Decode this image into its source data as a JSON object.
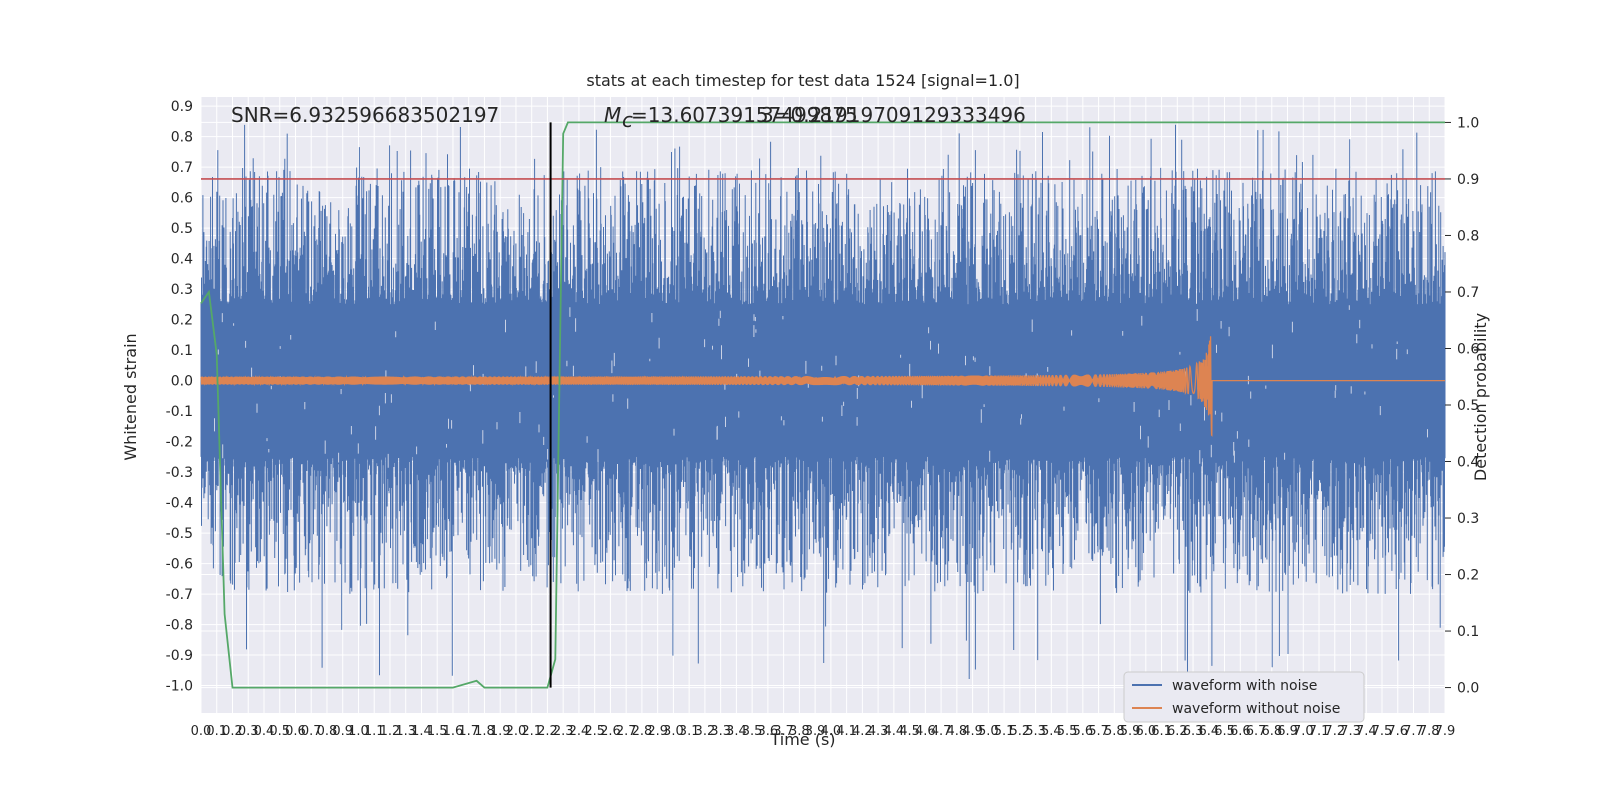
{
  "chart_data": {
    "type": "line",
    "title": "stats at each timestep for test data 1524 [signal=1.0]",
    "xlabel": "Time (s)",
    "ylabel_left": "Whitened strain",
    "ylabel_right": "Detection probability",
    "xlim": [
      0.0,
      7.9
    ],
    "ylim_left": [
      -1.09,
      0.93
    ],
    "ylim_right": [
      -0.045,
      1.045
    ],
    "xticks": [
      "0.0",
      "0.1",
      "0.2",
      "0.3",
      "0.4",
      "0.5",
      "0.6",
      "0.7",
      "0.8",
      "0.9",
      "1.0",
      "1.1",
      "1.2",
      "1.3",
      "1.4",
      "1.5",
      "1.6",
      "1.7",
      "1.8",
      "1.9",
      "2.0",
      "2.1",
      "2.2",
      "2.3",
      "2.4",
      "2.5",
      "2.6",
      "2.7",
      "2.8",
      "2.9",
      "3.0",
      "3.1",
      "3.2",
      "3.3",
      "3.4",
      "3.5",
      "3.6",
      "3.7",
      "3.8",
      "3.9",
      "4.0",
      "4.1",
      "4.2",
      "4.3",
      "4.4",
      "4.5",
      "4.6",
      "4.7",
      "4.8",
      "4.9",
      "5.0",
      "5.1",
      "5.2",
      "5.3",
      "5.4",
      "5.5",
      "5.6",
      "5.7",
      "5.8",
      "5.9",
      "6.0",
      "6.1",
      "6.2",
      "6.3",
      "6.4",
      "6.5",
      "6.6",
      "6.7",
      "6.8",
      "6.9",
      "7.0",
      "7.1",
      "7.2",
      "7.3",
      "7.4",
      "7.5",
      "7.6",
      "7.7",
      "7.8",
      "7.9"
    ],
    "yticks_left": [
      "0.9",
      "0.8",
      "0.7",
      "0.6",
      "0.5",
      "0.4",
      "0.3",
      "0.2",
      "0.1",
      "0.0",
      "-0.1",
      "-0.2",
      "-0.3",
      "-0.4",
      "-0.5",
      "-0.6",
      "-0.7",
      "-0.8",
      "-0.9",
      "-1.0"
    ],
    "yticks_right": [
      "1.0",
      "0.9",
      "0.8",
      "0.7",
      "0.6",
      "0.5",
      "0.4",
      "0.3",
      "0.2",
      "0.1",
      "0.0"
    ],
    "grid": true,
    "legend_position": "bottom-right",
    "series": [
      {
        "name": "waveform with noise",
        "axis": "left",
        "color": "#4c72b0",
        "envelope_abs": 0.25,
        "spike_max": [
          0.84,
          -0.98
        ]
      },
      {
        "name": "waveform without noise",
        "axis": "left",
        "color": "#dd8452",
        "peak_time": 6.42,
        "peak_amplitude": 0.27
      },
      {
        "axis": "right",
        "color": "#55a868",
        "points": [
          [
            0.0,
            0.68
          ],
          [
            0.05,
            0.7
          ],
          [
            0.1,
            0.59
          ],
          [
            0.15,
            0.13
          ],
          [
            0.2,
            0.0
          ],
          [
            1.6,
            0.0
          ],
          [
            1.75,
            0.012
          ],
          [
            1.8,
            0.0
          ],
          [
            2.2,
            0.0
          ],
          [
            2.25,
            0.05
          ],
          [
            2.3,
            0.98
          ],
          [
            2.33,
            1.0
          ],
          [
            7.9,
            1.0
          ]
        ]
      }
    ],
    "threshold": {
      "axis": "right",
      "value": 0.9,
      "color": "#c44e52"
    },
    "vline": {
      "x": 2.22,
      "color": "#000000"
    },
    "annotations": {
      "snr": "SNR=6.932596683502197",
      "mc": "=13.60739157499875",
      "overlap": "3=0.21919709129333496"
    }
  }
}
